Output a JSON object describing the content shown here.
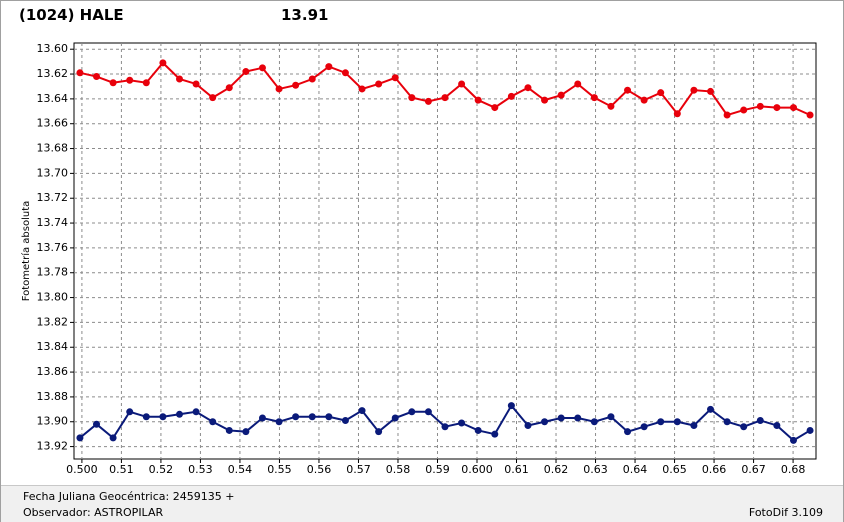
{
  "chart_data": {
    "type": "line",
    "title": "(1024) HALE",
    "subtitle": "13.91",
    "title_color": "#e00000",
    "subtitle_color": "#1a1a80",
    "y_label": "Fotometría absoluta",
    "x": [
      0.4995,
      0.5037,
      0.5079,
      0.5121,
      0.5163,
      0.5205,
      0.5247,
      0.5289,
      0.5331,
      0.5373,
      0.5415,
      0.5457,
      0.5499,
      0.5541,
      0.5583,
      0.5625,
      0.5667,
      0.5709,
      0.5751,
      0.5793,
      0.5835,
      0.5877,
      0.5919,
      0.5961,
      0.6003,
      0.6045,
      0.6087,
      0.6129,
      0.6171,
      0.6213,
      0.6255,
      0.6297,
      0.6339,
      0.6381,
      0.6423,
      0.6465,
      0.6507,
      0.6549,
      0.6591,
      0.6633,
      0.6675,
      0.6717,
      0.6759,
      0.6801,
      0.6843
    ],
    "series": [
      {
        "color": "#e8000b",
        "values": [
          13.619,
          13.622,
          13.627,
          13.625,
          13.627,
          13.611,
          13.624,
          13.628,
          13.639,
          13.631,
          13.618,
          13.615,
          13.632,
          13.629,
          13.624,
          13.614,
          13.619,
          13.632,
          13.628,
          13.623,
          13.639,
          13.642,
          13.639,
          13.628,
          13.641,
          13.647,
          13.638,
          13.631,
          13.641,
          13.637,
          13.628,
          13.639,
          13.646,
          13.633,
          13.641,
          13.635,
          13.652,
          13.633,
          13.634,
          13.653,
          13.649,
          13.646,
          13.647,
          13.647,
          13.653
        ]
      },
      {
        "color": "#0a1a7a",
        "values": [
          13.913,
          13.902,
          13.913,
          13.892,
          13.896,
          13.896,
          13.894,
          13.892,
          13.9,
          13.907,
          13.908,
          13.897,
          13.9,
          13.896,
          13.896,
          13.896,
          13.899,
          13.891,
          13.908,
          13.897,
          13.892,
          13.892,
          13.904,
          13.901,
          13.907,
          13.91,
          13.887,
          13.903,
          13.9,
          13.897,
          13.897,
          13.9,
          13.896,
          13.908,
          13.904,
          13.9,
          13.9,
          13.903,
          13.89,
          13.9,
          13.904,
          13.899,
          13.903,
          13.915,
          13.907
        ]
      }
    ],
    "xlim": [
      0.498,
      0.6858
    ],
    "xticks": [
      {
        "value": 0.5,
        "label": "0.500"
      },
      0.51,
      0.52,
      0.53,
      0.54,
      0.55,
      0.56,
      0.57,
      0.58,
      0.59,
      {
        "value": 0.6,
        "label": "0.600"
      },
      0.61,
      0.62,
      0.63,
      0.64,
      0.65,
      0.66,
      0.67,
      0.68
    ],
    "ylim": [
      13.595,
      13.93
    ],
    "y_inverted": true,
    "yticks": [
      {
        "value": 13.6,
        "label": "13.60"
      },
      13.62,
      13.64,
      13.66,
      13.68,
      {
        "value": 13.7,
        "label": "13.70"
      },
      13.72,
      13.74,
      13.76,
      13.78,
      {
        "value": 13.8,
        "label": "13.80"
      },
      13.82,
      13.84,
      13.86,
      13.88,
      {
        "value": 13.9,
        "label": "13.90"
      },
      13.92
    ],
    "grid": true
  },
  "footer": {
    "date": "Fecha Juliana Geocéntrica: 2459135 +",
    "observer": "Observador: ASTROPILAR",
    "version": "FotoDif 3.109"
  }
}
